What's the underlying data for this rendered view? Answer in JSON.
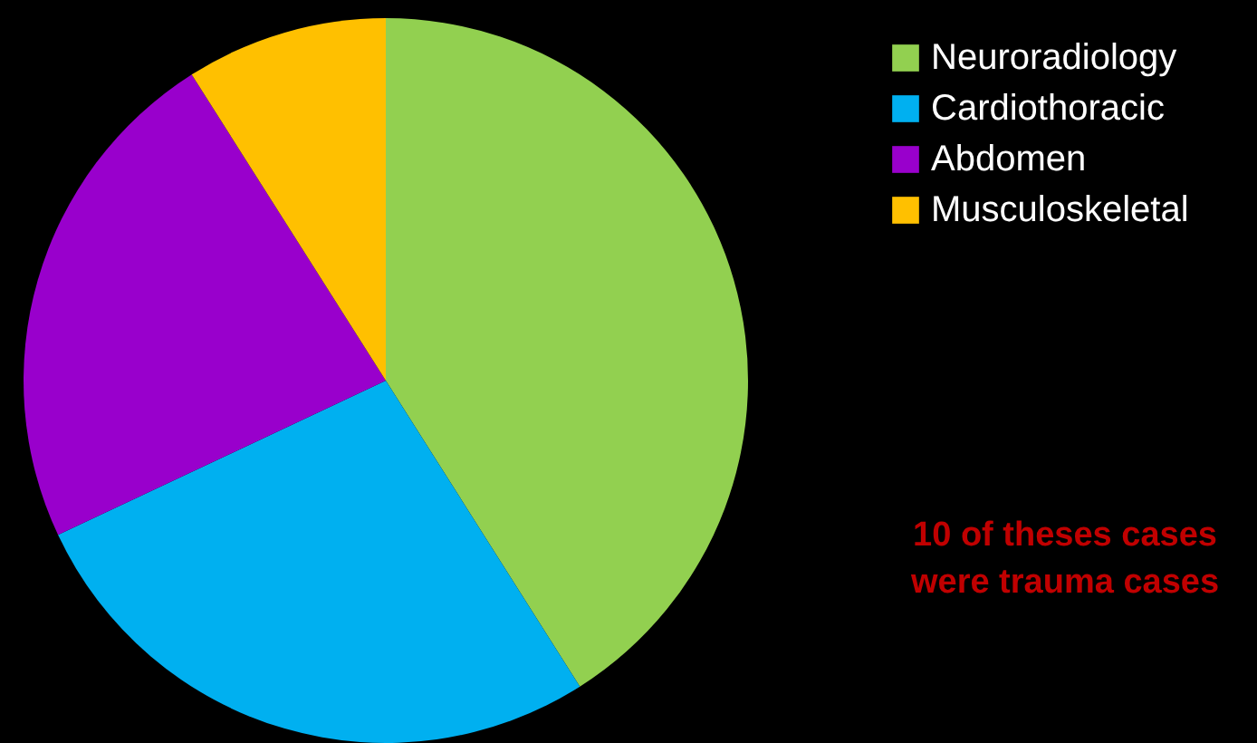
{
  "chart_data": {
    "type": "pie",
    "categories": [
      "Neuroradiology",
      "Cardiothoracic",
      "Abdomen",
      "Musculoskeletal"
    ],
    "values": [
      41,
      27,
      23,
      9
    ],
    "colors": [
      "#92d050",
      "#00b0f0",
      "#9900cc",
      "#ffc000"
    ],
    "legend": "right",
    "annotations": [
      "10 of theses cases\nwere trauma cases"
    ]
  }
}
